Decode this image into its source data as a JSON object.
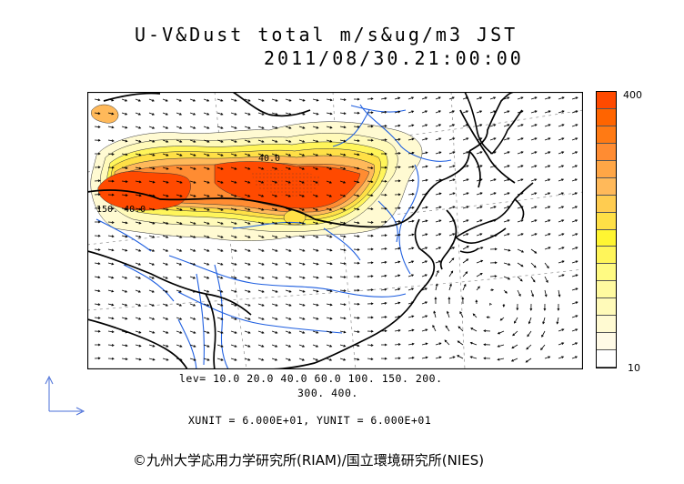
{
  "header": {
    "title_line1": "U-V&Dust total m/s&ug/m3 JST",
    "title_line2": "2011/08/30.21:00:00"
  },
  "map": {
    "region": "East Asia",
    "background_color": "#ffffff",
    "coastline_color": "#000000",
    "river_color": "#1f5fe0",
    "grid_color": "#8c8c8c",
    "contour_label_1": "40.0",
    "contour_label_2": "150. 40.0"
  },
  "colorbar": {
    "max_label": "400",
    "min_label": "10",
    "colors": [
      "#ff4a00",
      "#ff6400",
      "#ff7a14",
      "#ff8c32",
      "#ffa646",
      "#ffb95a",
      "#ffcc50",
      "#ffe046",
      "#fff532",
      "#fff55a",
      "#fffa82",
      "#fffaa0",
      "#fffab9",
      "#fffad2",
      "#fffae6",
      "#ffffff"
    ]
  },
  "levels": {
    "line1": "lev= 10.0 20.0 40.0 60.0 100. 150. 200.",
    "line2": "300. 400."
  },
  "units": {
    "text": "XUNIT = 6.000E+01, YUNIT = 6.000E+01"
  },
  "credit": {
    "text": "©九州大学応用力学研究所(RIAM)/国立環境研究所(NIES)"
  }
}
